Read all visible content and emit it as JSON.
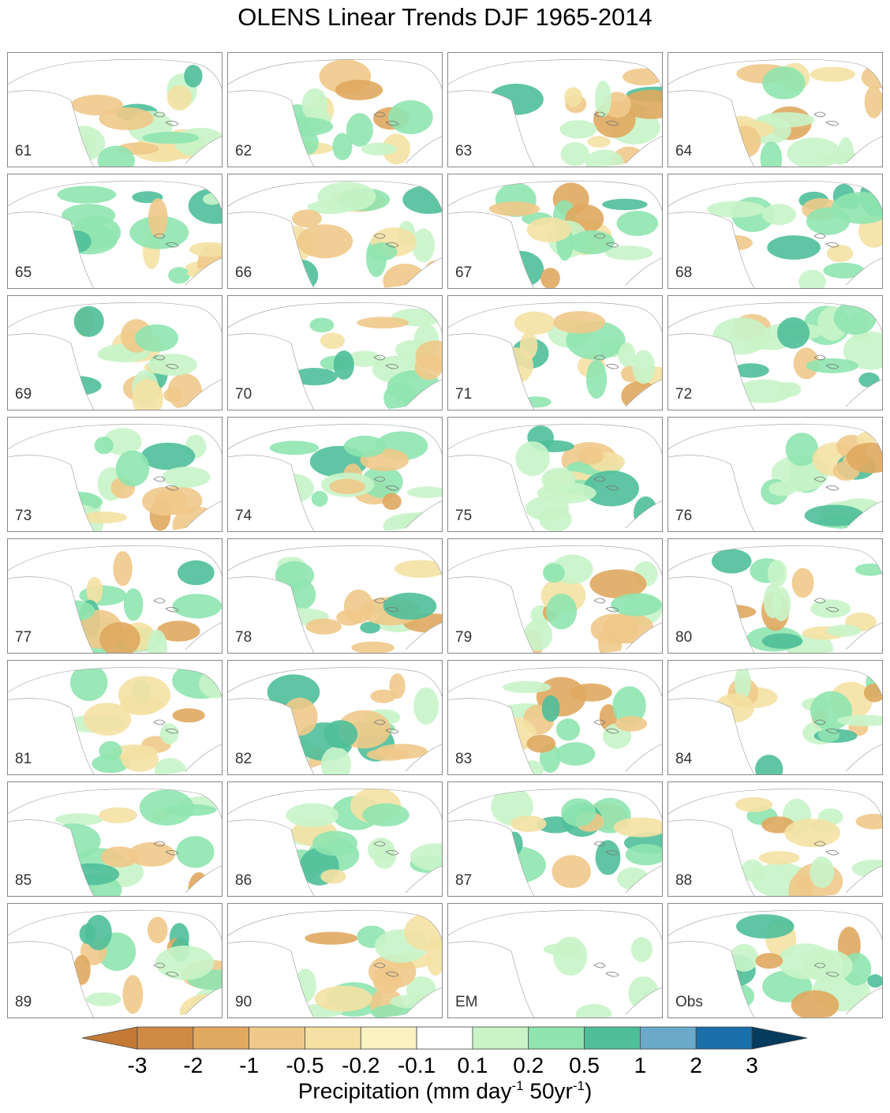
{
  "title": "OLENS Linear Trends DJF 1965-2014",
  "panels": [
    "61",
    "62",
    "63",
    "64",
    "65",
    "66",
    "67",
    "68",
    "69",
    "70",
    "71",
    "72",
    "73",
    "74",
    "75",
    "76",
    "77",
    "78",
    "79",
    "80",
    "81",
    "82",
    "83",
    "84",
    "85",
    "86",
    "87",
    "88",
    "89",
    "90",
    "EM",
    "Obs"
  ],
  "colorbar": {
    "levels": [
      "-3",
      "-2",
      "-1",
      "-0.5",
      "-0.2",
      "-0.1",
      "0.1",
      "0.2",
      "0.5",
      "1",
      "2",
      "3"
    ],
    "colors": [
      "#c47a35",
      "#cf8a44",
      "#e0a95f",
      "#f0c98a",
      "#f4e1a3",
      "#fbf2c2",
      "#ffffff",
      "#c8f4c8",
      "#8fe4b0",
      "#4fbf9a",
      "#6aa9c9",
      "#1a6fa8",
      "#053b5c"
    ],
    "label": "Precipitation (mm day",
    "label_sup1": "-1",
    "label_mid": " 50yr",
    "label_sup2": "-1",
    "label_end": ")"
  }
}
